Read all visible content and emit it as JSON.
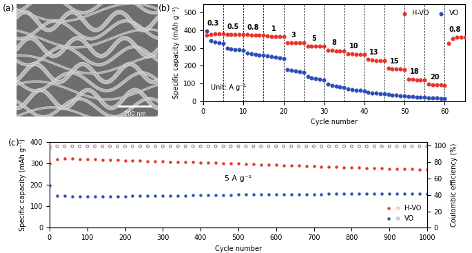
{
  "chart_data": [
    {
      "type": "image",
      "title": "(a)",
      "annotations": [
        "200 nm"
      ]
    },
    {
      "type": "scatter",
      "title": "(b)",
      "x_label": "Cycle number",
      "y_label": "Specific capacity (mAh g⁻¹)",
      "xlim": [
        0,
        65
      ],
      "xticks": [
        0,
        10,
        20,
        30,
        40,
        50,
        60
      ],
      "ylim": [
        0,
        550
      ],
      "yticks": [
        0,
        100,
        200,
        300,
        400,
        500
      ],
      "legend": "upper right",
      "annotations": [
        "Unit: A g⁻¹"
      ],
      "dividers": [
        5,
        10,
        15,
        20,
        25,
        30,
        35,
        40,
        45,
        50,
        55,
        60
      ],
      "rates": [
        "0.3",
        "0.5",
        "0.8",
        "1",
        "3",
        "5",
        "8",
        "10",
        "13",
        "15",
        "18",
        "20",
        "0.8"
      ],
      "x": [
        1,
        2,
        3,
        4,
        5,
        6,
        7,
        8,
        9,
        10,
        11,
        12,
        13,
        14,
        15,
        16,
        17,
        18,
        19,
        20,
        21,
        22,
        23,
        24,
        25,
        26,
        27,
        28,
        29,
        30,
        31,
        32,
        33,
        34,
        35,
        36,
        37,
        38,
        39,
        40,
        41,
        42,
        43,
        44,
        45,
        46,
        47,
        48,
        49,
        50,
        51,
        52,
        53,
        54,
        55,
        56,
        57,
        58,
        59,
        60,
        61,
        62,
        63,
        64,
        65
      ],
      "series": [
        {
          "name": "H-VO",
          "color": "#e8352b",
          "marker": "o",
          "values": [
            372,
            378,
            380,
            380,
            380,
            378,
            378,
            377,
            377,
            377,
            375,
            374,
            374,
            373,
            373,
            368,
            367,
            367,
            366,
            366,
            332,
            330,
            330,
            329,
            329,
            312,
            310,
            310,
            309,
            309,
            288,
            286,
            285,
            285,
            284,
            268,
            266,
            265,
            264,
            264,
            235,
            232,
            230,
            229,
            228,
            185,
            183,
            182,
            181,
            180,
            125,
            122,
            120,
            119,
            118,
            95,
            93,
            92,
            91,
            90,
            325,
            355,
            360,
            362,
            362
          ]
        },
        {
          "name": "VO",
          "color": "#2b4fb8",
          "marker": "o",
          "values": [
            398,
            340,
            335,
            330,
            325,
            300,
            296,
            293,
            291,
            289,
            272,
            267,
            264,
            261,
            259,
            255,
            251,
            247,
            244,
            241,
            180,
            173,
            169,
            166,
            163,
            140,
            131,
            126,
            122,
            119,
            95,
            89,
            85,
            82,
            79,
            70,
            66,
            63,
            61,
            59,
            50,
            47,
            45,
            43,
            41,
            38,
            35,
            33,
            31,
            30,
            28,
            25,
            23,
            22,
            21,
            20,
            18,
            17,
            16,
            15,
            null,
            null,
            null,
            null,
            null
          ]
        }
      ]
    },
    {
      "type": "scatter",
      "title": "(c)",
      "x_label": "Cycle number",
      "y_label": "Specific capacity (mAh g⁻¹)",
      "y2_label": "Coulombic efficiency (%)",
      "xlim": [
        0,
        1000
      ],
      "xticks": [
        0,
        100,
        200,
        300,
        400,
        500,
        600,
        700,
        800,
        900,
        1000
      ],
      "ylim": [
        0,
        400
      ],
      "yticks": [
        0,
        100,
        200,
        300,
        400
      ],
      "y2lim": [
        0,
        105
      ],
      "y2ticks": [
        0,
        20,
        40,
        60,
        80,
        100
      ],
      "legend": "lower right",
      "annotations": [
        "5 A g⁻¹"
      ],
      "x": [
        1,
        20,
        40,
        60,
        80,
        100,
        120,
        140,
        160,
        180,
        200,
        220,
        240,
        260,
        280,
        300,
        320,
        340,
        360,
        380,
        400,
        420,
        440,
        460,
        480,
        500,
        520,
        540,
        560,
        580,
        600,
        620,
        640,
        660,
        680,
        700,
        720,
        740,
        760,
        780,
        800,
        820,
        840,
        860,
        880,
        900,
        920,
        940,
        960,
        980,
        1000
      ],
      "series": [
        {
          "name": "H-VO",
          "color": "#e8352b",
          "marker": "o",
          "values": [
            300,
            318,
            320,
            320,
            319,
            318,
            317,
            316,
            315,
            314,
            313,
            312,
            311,
            310,
            309,
            308,
            307,
            306,
            305,
            304,
            303,
            302,
            301,
            300,
            299,
            298,
            297,
            296,
            294,
            293,
            292,
            290,
            289,
            288,
            287,
            285,
            284,
            283,
            282,
            281,
            280,
            279,
            278,
            277,
            276,
            275,
            274,
            273,
            272,
            271,
            270
          ]
        },
        {
          "name": "H-VO",
          "color": "#e8352b",
          "marker": "open",
          "axis": "y2",
          "values": [
            99.5,
            99.5,
            99.5,
            99.5,
            99.5,
            99.5,
            99.5,
            99.5,
            99.5,
            99.5,
            99.5,
            99.5,
            99.5,
            99.5,
            99.5,
            99.5,
            99.5,
            99.5,
            99.5,
            99.5,
            99.5,
            99.5,
            99.5,
            99.5,
            99.5,
            99.5,
            99.5,
            99.5,
            99.5,
            99.5,
            99.5,
            99.5,
            99.5,
            99.5,
            99.5,
            99.5,
            99.5,
            99.5,
            99.5,
            99.5,
            99.5,
            99.5,
            99.5,
            99.5,
            99.5,
            99.5,
            99.5,
            99.5,
            99.5,
            99.5,
            99.5
          ]
        },
        {
          "name": "VO",
          "color": "#2b4fb8",
          "marker": "o",
          "values": [
            195,
            150,
            147,
            146,
            146,
            145,
            145,
            145,
            145,
            146,
            146,
            147,
            147,
            148,
            148,
            149,
            149,
            150,
            150,
            151,
            151,
            152,
            152,
            153,
            153,
            154,
            154,
            155,
            155,
            155,
            155,
            155,
            156,
            156,
            156,
            156,
            156,
            157,
            157,
            157,
            157,
            157,
            157,
            157,
            158,
            158,
            158,
            158,
            158,
            158,
            158
          ]
        },
        {
          "name": "VO",
          "color": "#2b4fb8",
          "marker": "open",
          "axis": "y2",
          "values": [
            97,
            99.2,
            99.2,
            99.2,
            99.2,
            99.2,
            99.2,
            99.2,
            99.2,
            99.2,
            99.2,
            99.2,
            99.2,
            99.2,
            99.2,
            99.2,
            99.2,
            99.2,
            99.2,
            99.2,
            99.2,
            99.2,
            99.2,
            99.2,
            99.2,
            99.2,
            99.2,
            99.2,
            99.2,
            99.2,
            99.2,
            99.2,
            99.2,
            99.2,
            99.2,
            99.2,
            99.2,
            99.2,
            99.2,
            99.2,
            99.2,
            99.2,
            99.2,
            99.2,
            99.2,
            99.2,
            99.2,
            99.2,
            99.2,
            99.2,
            99.2
          ]
        }
      ]
    }
  ]
}
